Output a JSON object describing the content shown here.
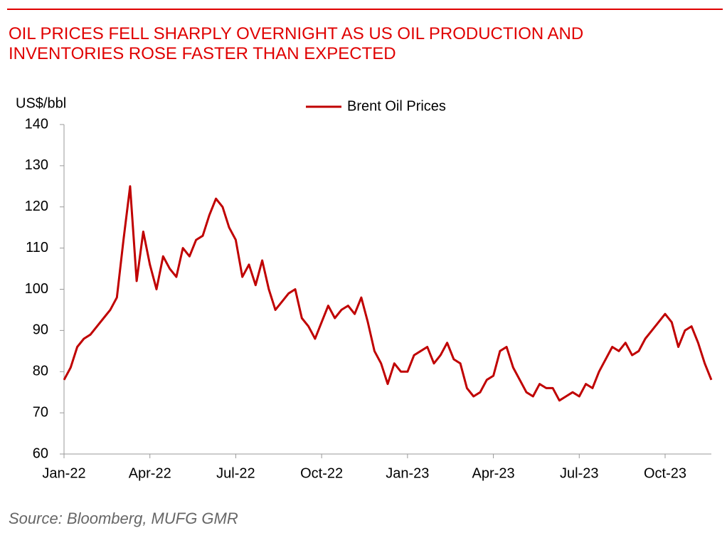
{
  "chart_data": {
    "type": "line",
    "title": "OIL PRICES FELL SHARPLY OVERNIGHT AS US OIL PRODUCTION AND INVENTORIES ROSE FASTER THAN EXPECTED",
    "y_label": "US$/bbl",
    "source": "Source: Bloomberg, MUFG GMR",
    "categories": [
      "Jan-22",
      null,
      null,
      null,
      null,
      null,
      null,
      null,
      null,
      null,
      null,
      null,
      null,
      "Apr-22",
      null,
      null,
      null,
      null,
      null,
      null,
      null,
      null,
      null,
      null,
      null,
      null,
      "Jul-22",
      null,
      null,
      null,
      null,
      null,
      null,
      null,
      null,
      null,
      null,
      null,
      null,
      "Oct-22",
      null,
      null,
      null,
      null,
      null,
      null,
      null,
      null,
      null,
      null,
      null,
      null,
      "Jan-23",
      null,
      null,
      null,
      null,
      null,
      null,
      null,
      null,
      null,
      null,
      null,
      null,
      "Apr-23",
      null,
      null,
      null,
      null,
      null,
      null,
      null,
      null,
      null,
      null,
      null,
      null,
      "Jul-23",
      null,
      null,
      null,
      null,
      null,
      null,
      null,
      null,
      null,
      null,
      null,
      null,
      "Oct-23",
      null,
      null,
      null,
      null,
      null,
      null,
      null
    ],
    "series": [
      {
        "name": "Brent Oil Prices",
        "color": "#c00000",
        "values": [
          78,
          81,
          86,
          88,
          89,
          91,
          93,
          95,
          98,
          112,
          125,
          102,
          114,
          106,
          100,
          108,
          105,
          103,
          110,
          108,
          112,
          113,
          118,
          122,
          120,
          115,
          112,
          103,
          106,
          101,
          107,
          100,
          95,
          97,
          99,
          100,
          93,
          91,
          88,
          92,
          96,
          93,
          95,
          96,
          94,
          98,
          92,
          85,
          82,
          77,
          82,
          80,
          80,
          84,
          85,
          86,
          82,
          84,
          87,
          83,
          82,
          76,
          74,
          75,
          78,
          79,
          85,
          86,
          81,
          78,
          75,
          74,
          77,
          76,
          76,
          73,
          74,
          75,
          74,
          77,
          76,
          80,
          83,
          86,
          85,
          87,
          84,
          85,
          88,
          90,
          92,
          94,
          92,
          86,
          90,
          91,
          87,
          82,
          78
        ]
      }
    ],
    "ylim": [
      60,
      140
    ],
    "yticks": [
      60,
      70,
      80,
      90,
      100,
      110,
      120,
      130,
      140
    ]
  }
}
